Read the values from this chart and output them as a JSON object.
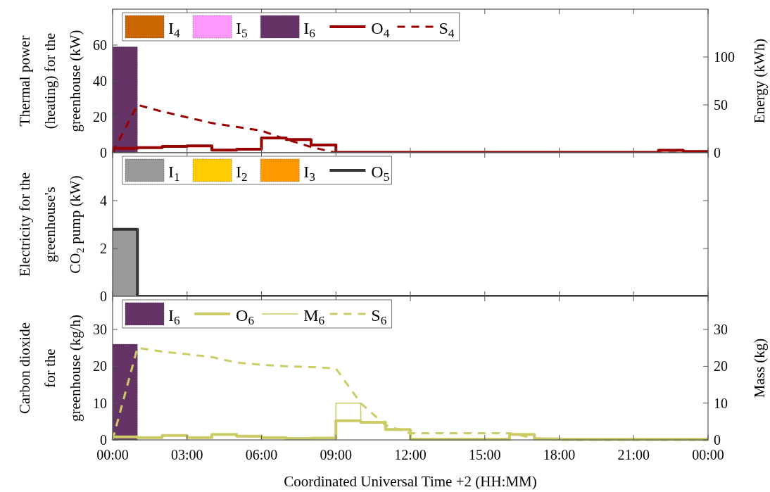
{
  "chart_data": [
    {
      "type": "bar",
      "ylabel": "Thermal power\n(heating) for the\ngreenhouse (kW)",
      "y2label": "Energy (kWh)",
      "xlim": [
        0,
        24
      ],
      "xticks": [
        {
          "value": 0,
          "label": null
        },
        {
          "value": 3,
          "label": null
        },
        {
          "value": 6,
          "label": null
        },
        {
          "value": 9,
          "label": null
        },
        {
          "value": 12,
          "label": null
        },
        {
          "value": 15,
          "label": null
        },
        {
          "value": 18,
          "label": null
        },
        {
          "value": 21,
          "label": null
        },
        {
          "value": 24,
          "label": null
        }
      ],
      "ylim": [
        0,
        80
      ],
      "yticks": [
        0,
        20,
        40,
        60
      ],
      "y2lim": [
        0,
        150
      ],
      "y2ticks": [
        0,
        50,
        100
      ],
      "tick_labels": "y",
      "grid": false,
      "legend": "top left",
      "series": [
        {
          "name": "I$_{4}$",
          "color": "#cc6600",
          "x": [
            0.5,
            1.5,
            2.5,
            3.5,
            4.5,
            5.5,
            6.5,
            7.5,
            8.5,
            9.5,
            10.5,
            11.5,
            12.5,
            13.5,
            14.5,
            15.5,
            16.5,
            17.5,
            18.5,
            19.5,
            20.5,
            21.5,
            22.5,
            23.5
          ],
          "values": [
            0,
            0,
            0,
            0,
            0,
            0,
            0,
            0,
            0,
            0,
            0,
            0,
            0,
            0,
            0,
            0,
            0,
            0,
            0,
            0,
            0,
            0,
            0,
            0
          ]
        },
        {
          "name": "I$_{5}$",
          "color": "#ff99ff",
          "x": [
            0.5,
            1.5,
            2.5,
            3.5,
            4.5,
            5.5,
            6.5,
            7.5,
            8.5,
            9.5,
            10.5,
            11.5,
            12.5,
            13.5,
            14.5,
            15.5,
            16.5,
            17.5,
            18.5,
            19.5,
            20.5,
            21.5,
            22.5,
            23.5
          ],
          "values": [
            0,
            0,
            0,
            0,
            0,
            0,
            0,
            0,
            0,
            0,
            0,
            0,
            0,
            0,
            0,
            0,
            0,
            0,
            0,
            0,
            0,
            0,
            0,
            0
          ]
        },
        {
          "name": "I$_{6}$",
          "color": "#663366",
          "x": [
            0.5,
            1.5,
            2.5,
            3.5,
            4.5,
            5.5,
            6.5,
            7.5,
            8.5,
            9.5,
            10.5,
            11.5,
            12.5,
            13.5,
            14.5,
            15.5,
            16.5,
            17.5,
            18.5,
            19.5,
            20.5,
            21.5,
            22.5,
            23.5
          ],
          "values": [
            59,
            0,
            0,
            0,
            0,
            0,
            0,
            0,
            0,
            0,
            0,
            0,
            0,
            0,
            0,
            0,
            0,
            0,
            0,
            0,
            0,
            0,
            0,
            0
          ]
        },
        {
          "name": "O$_{4}$",
          "type": "step",
          "color": "#990000",
          "line_style": "solid",
          "x": [
            0,
            1,
            2,
            3,
            4,
            5,
            6,
            7,
            8,
            9,
            10,
            11,
            12,
            13,
            14,
            15,
            16,
            17,
            18,
            19,
            20,
            21,
            22,
            23,
            24
          ],
          "values": [
            2.5,
            2.8,
            3.5,
            3.8,
            1.5,
            2,
            8.2,
            7.4,
            4.3,
            0.2,
            0.2,
            0.2,
            0.2,
            0.2,
            0.2,
            0.2,
            0.2,
            0.2,
            0.2,
            0.2,
            0.2,
            0.2,
            1.4,
            0.7,
            0.7
          ]
        },
        {
          "name": "S$_{4}$",
          "type": "line",
          "axis": "y2",
          "color": "#990000",
          "line_style": "dashed",
          "x": [
            0,
            1,
            2,
            3,
            4,
            5,
            6,
            7,
            8,
            9,
            10,
            11,
            12,
            13,
            14,
            15,
            16,
            17,
            18,
            19,
            20,
            21,
            22,
            23,
            24
          ],
          "values": [
            0,
            50,
            43,
            37,
            31,
            27,
            23,
            14,
            6,
            0,
            0,
            0,
            0,
            0,
            0,
            0,
            0,
            0,
            0,
            0,
            0,
            0,
            0,
            0,
            0
          ]
        }
      ]
    },
    {
      "type": "bar",
      "ylabel": "Electricity for the\ngreenhouse's\nCO$_{2}$ pump (kW)",
      "xlim": [
        0,
        24
      ],
      "xticks": [
        {
          "value": 0,
          "label": null
        },
        {
          "value": 3,
          "label": null
        },
        {
          "value": 6,
          "label": null
        },
        {
          "value": 9,
          "label": null
        },
        {
          "value": 12,
          "label": null
        },
        {
          "value": 15,
          "label": null
        },
        {
          "value": 18,
          "label": null
        },
        {
          "value": 21,
          "label": null
        },
        {
          "value": 24,
          "label": null
        }
      ],
      "ylim": [
        0,
        6
      ],
      "yticks": [
        0,
        2,
        4
      ],
      "tick_labels": "y",
      "grid": false,
      "legend": "top left",
      "series": [
        {
          "name": "I$_{1}$",
          "color": "#999999",
          "x": [
            0.5,
            1.5,
            2.5,
            3.5,
            4.5,
            5.5,
            6.5,
            7.5,
            8.5,
            9.5,
            10.5,
            11.5,
            12.5,
            13.5,
            14.5,
            15.5,
            16.5,
            17.5,
            18.5,
            19.5,
            20.5,
            21.5,
            22.5,
            23.5
          ],
          "values": [
            2.8,
            0,
            0,
            0,
            0,
            0,
            0,
            0,
            0,
            0,
            0,
            0,
            0,
            0,
            0,
            0,
            0,
            0,
            0,
            0,
            0,
            0,
            0,
            0
          ]
        },
        {
          "name": "I$_{2}$",
          "color": "#ffcc00",
          "x": [
            0.5,
            1.5,
            2.5,
            3.5,
            4.5,
            5.5,
            6.5,
            7.5,
            8.5,
            9.5,
            10.5,
            11.5,
            12.5,
            13.5,
            14.5,
            15.5,
            16.5,
            17.5,
            18.5,
            19.5,
            20.5,
            21.5,
            22.5,
            23.5
          ],
          "values": [
            0,
            0,
            0,
            0,
            0,
            0,
            0,
            0,
            0,
            0,
            0,
            0,
            0,
            0,
            0,
            0,
            0,
            0,
            0,
            0,
            0,
            0,
            0,
            0
          ]
        },
        {
          "name": "I$_{3}$",
          "color": "#ff9900",
          "x": [
            0.5,
            1.5,
            2.5,
            3.5,
            4.5,
            5.5,
            6.5,
            7.5,
            8.5,
            9.5,
            10.5,
            11.5,
            12.5,
            13.5,
            14.5,
            15.5,
            16.5,
            17.5,
            18.5,
            19.5,
            20.5,
            21.5,
            22.5,
            23.5
          ],
          "values": [
            0,
            0,
            0,
            0,
            0,
            0,
            0,
            0,
            0,
            0,
            0,
            0,
            0,
            0,
            0,
            0,
            0,
            0,
            0,
            0,
            0,
            0,
            0,
            0
          ]
        },
        {
          "name": "O$_{5}$",
          "type": "step",
          "color": "#333333",
          "line_style": "solid",
          "x": [
            0,
            1,
            2,
            3,
            4,
            5,
            6,
            7,
            8,
            9,
            10,
            11,
            12,
            13,
            14,
            15,
            16,
            17,
            18,
            19,
            20,
            21,
            22,
            23,
            24
          ],
          "values": [
            2.8,
            0,
            0,
            0,
            0,
            0,
            0,
            0,
            0,
            0,
            0,
            0,
            0,
            0,
            0,
            0,
            0,
            0,
            0,
            0,
            0,
            0,
            0,
            0,
            0
          ]
        }
      ]
    },
    {
      "type": "bar",
      "ylabel": "Carbon dioxide\nfor the\ngreenhouse (kg/h)",
      "y2label": "Mass (kg)",
      "xlabel": "Coordinated Universal Time +2 (HH:MM)",
      "xlim": [
        0,
        24
      ],
      "xticks": [
        {
          "value": 0,
          "label": "00:00"
        },
        {
          "value": 3,
          "label": "03:00"
        },
        {
          "value": 6,
          "label": "06:00"
        },
        {
          "value": 9,
          "label": "09:00"
        },
        {
          "value": 12,
          "label": "12:00"
        },
        {
          "value": 15,
          "label": "15:00"
        },
        {
          "value": 18,
          "label": "18:00"
        },
        {
          "value": 21,
          "label": "21:00"
        },
        {
          "value": 24,
          "label": "00:00"
        }
      ],
      "ylim": [
        0,
        39
      ],
      "yticks": [
        0,
        10,
        20,
        30
      ],
      "y2lim": [
        0,
        39
      ],
      "y2ticks": [
        0,
        10,
        20,
        30
      ],
      "grid": false,
      "legend": "top left",
      "series": [
        {
          "name": "I$_{6}$",
          "color": "#663366",
          "x": [
            0.5,
            1.5,
            2.5,
            3.5,
            4.5,
            5.5,
            6.5,
            7.5,
            8.5,
            9.5,
            10.5,
            11.5,
            12.5,
            13.5,
            14.5,
            15.5,
            16.5,
            17.5,
            18.5,
            19.5,
            20.5,
            21.5,
            22.5,
            23.5
          ],
          "values": [
            26,
            0,
            0,
            0,
            0,
            0,
            0,
            0,
            0,
            0,
            0,
            0,
            0,
            0,
            0,
            0,
            0,
            0,
            0,
            0,
            0,
            0,
            0,
            0
          ]
        },
        {
          "name": "O$_{6}$",
          "type": "step",
          "color": "#cccc66",
          "line_style": "solid",
          "x": [
            0,
            1,
            2,
            3,
            4,
            5,
            6,
            7,
            8,
            9,
            10,
            11,
            12,
            13,
            14,
            15,
            16,
            17,
            18,
            19,
            20,
            21,
            22,
            23,
            24
          ],
          "values": [
            0.8,
            0.6,
            1.2,
            0.6,
            1.5,
            1,
            0.6,
            0.4,
            0.5,
            5.2,
            4.8,
            2.8,
            0.2,
            0.2,
            0.2,
            0.2,
            1.5,
            0.3,
            0.2,
            0.2,
            0.2,
            0.2,
            0.2,
            0.2,
            0.2
          ]
        },
        {
          "name": "M$_{6}$",
          "type": "step",
          "color": "#cccc66",
          "line_style": "solid",
          "x": [
            0,
            1,
            2,
            3,
            4,
            5,
            6,
            7,
            8,
            9,
            10,
            11,
            12,
            13,
            14,
            15,
            16,
            17,
            18,
            19,
            20,
            21,
            22,
            23,
            24
          ],
          "values": [
            0.8,
            0.6,
            1.2,
            0.6,
            1.5,
            1,
            0.6,
            0.4,
            0.5,
            10,
            4.8,
            2.8,
            0.2,
            0.2,
            0.2,
            0.2,
            1.5,
            0.3,
            0.2,
            0.2,
            0.2,
            0.2,
            0.2,
            0.2,
            0.2
          ]
        },
        {
          "name": "S$_{6}$",
          "type": "line",
          "axis": "y2",
          "color": "#cccc66",
          "line_style": "dashed",
          "x": [
            0,
            1,
            2,
            3,
            4,
            5,
            6,
            7,
            8,
            9,
            10,
            11,
            12,
            13,
            14,
            15,
            16,
            17,
            18,
            19,
            20,
            21,
            22,
            23,
            24
          ],
          "values": [
            0,
            25,
            24,
            23.3,
            22.5,
            21,
            20.4,
            20,
            19.8,
            19.4,
            10,
            4,
            1.8,
            1.8,
            1.8,
            1.8,
            1.8,
            0.5,
            0,
            0,
            0,
            0,
            0,
            0,
            0
          ]
        }
      ]
    }
  ]
}
